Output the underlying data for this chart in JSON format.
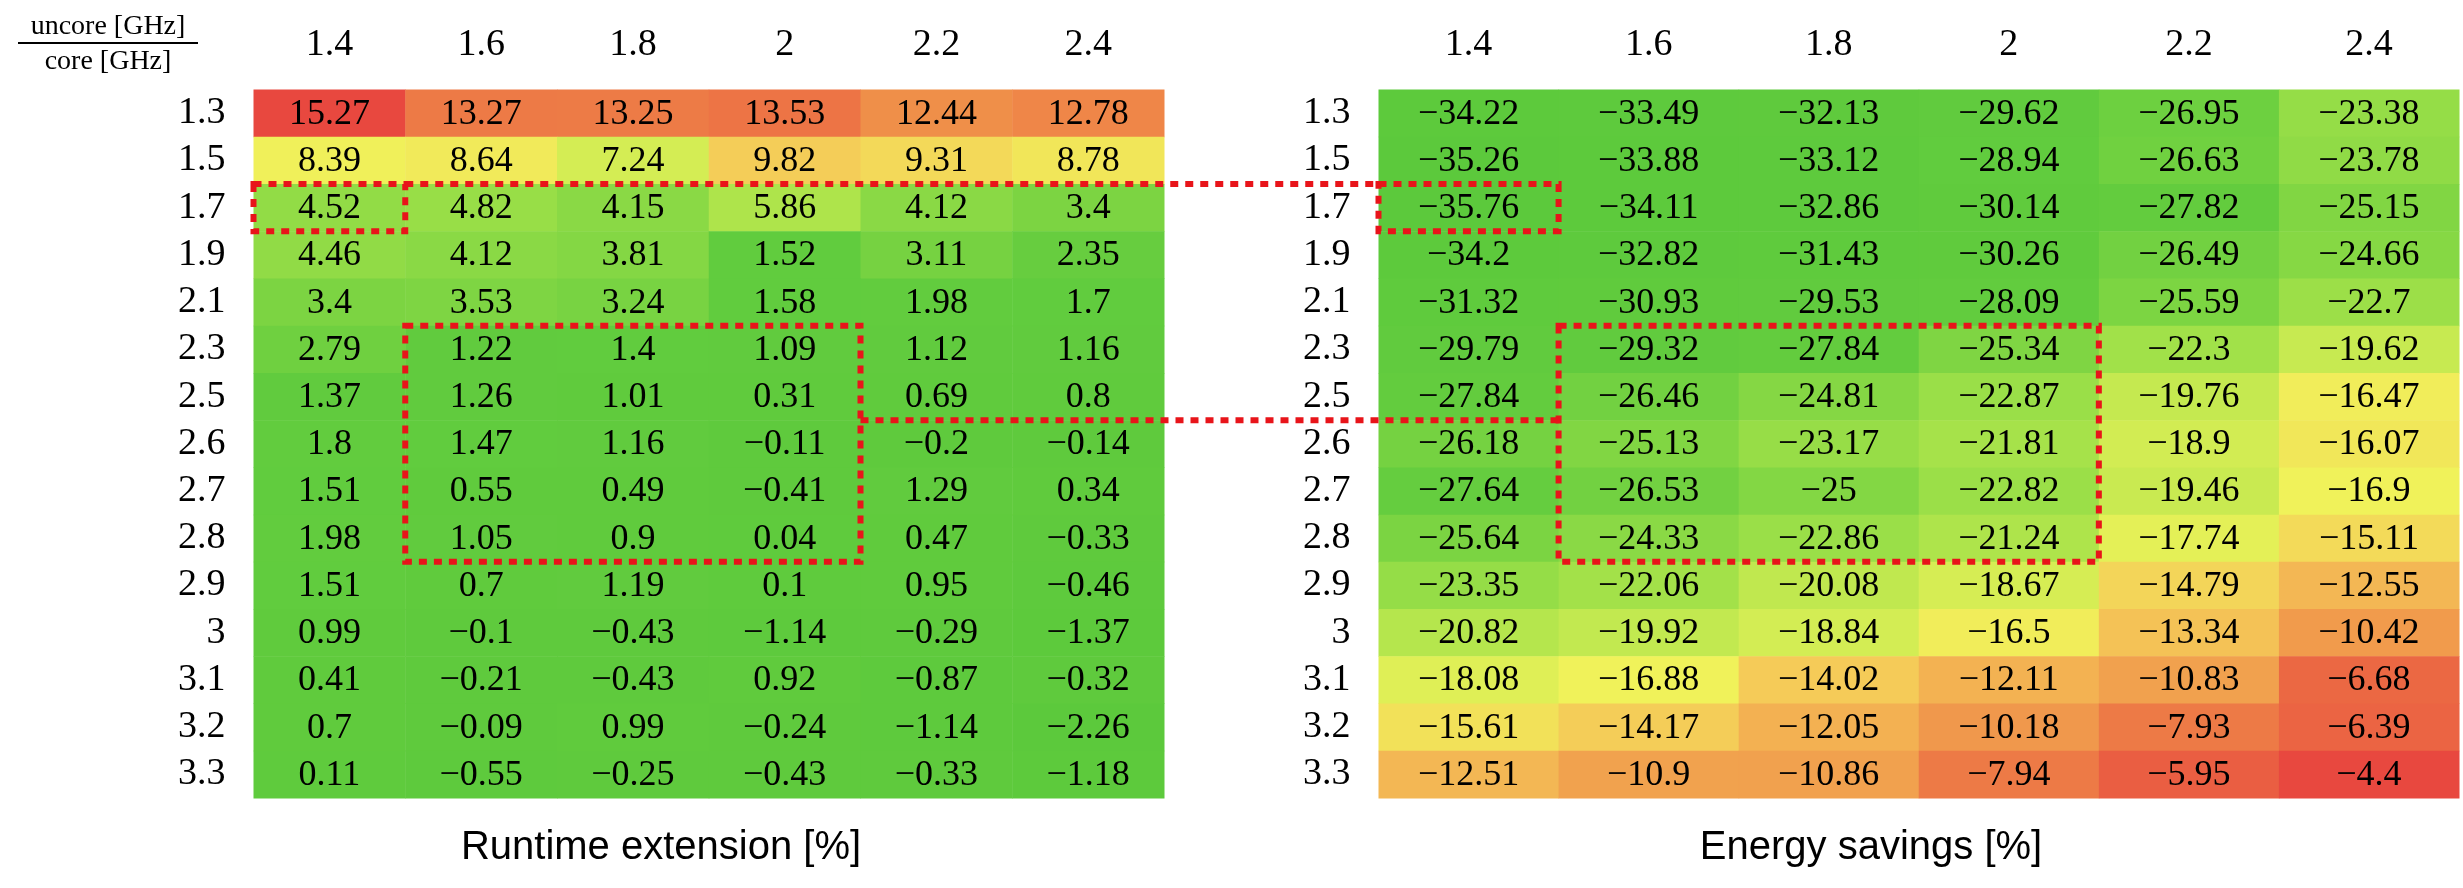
{
  "chart_data": [
    {
      "type": "heatmap",
      "title": "Runtime extension [%]",
      "xlabel": "uncore [GHz]",
      "ylabel": "core [GHz]",
      "data_labels": true,
      "categories": [
        "1.4",
        "1.6",
        "1.8",
        "2",
        "2.2",
        "2.4"
      ],
      "y_categories": [
        "1.3",
        "1.5",
        "1.7",
        "1.9",
        "2.1",
        "2.3",
        "2.5",
        "2.6",
        "2.7",
        "2.8",
        "2.9",
        "3",
        "3.1",
        "3.2",
        "3.3"
      ],
      "cells": [
        [
          15.27,
          13.27,
          13.25,
          13.53,
          12.44,
          12.78
        ],
        [
          8.39,
          8.64,
          7.24,
          9.82,
          9.31,
          8.78
        ],
        [
          4.52,
          4.82,
          4.15,
          5.86,
          4.12,
          3.4
        ],
        [
          4.46,
          4.12,
          3.81,
          1.52,
          3.11,
          2.35
        ],
        [
          3.4,
          3.53,
          3.24,
          1.58,
          1.98,
          1.7
        ],
        [
          2.79,
          1.22,
          1.4,
          1.09,
          1.12,
          1.16
        ],
        [
          1.37,
          1.26,
          1.01,
          0.31,
          0.69,
          0.8
        ],
        [
          1.8,
          1.47,
          1.16,
          -0.11,
          -0.2,
          -0.14
        ],
        [
          1.51,
          0.55,
          0.49,
          -0.41,
          1.29,
          0.34
        ],
        [
          1.98,
          1.05,
          0.9,
          0.04,
          0.47,
          -0.33
        ],
        [
          1.51,
          0.7,
          1.19,
          0.1,
          0.95,
          -0.46
        ],
        [
          0.99,
          -0.1,
          -0.43,
          -1.14,
          -0.29,
          -1.37
        ],
        [
          0.41,
          -0.21,
          -0.43,
          0.92,
          -0.87,
          -0.32
        ],
        [
          0.7,
          -0.09,
          0.99,
          -0.24,
          -1.14,
          -2.26
        ],
        [
          0.11,
          -0.55,
          -0.25,
          -0.43,
          -0.33,
          -1.18
        ]
      ]
    },
    {
      "type": "heatmap",
      "title": "Energy savings [%]",
      "data_labels": true,
      "categories": [
        "1.4",
        "1.6",
        "1.8",
        "2",
        "2.2",
        "2.4"
      ],
      "y_categories": [
        "1.3",
        "1.5",
        "1.7",
        "1.9",
        "2.1",
        "2.3",
        "2.5",
        "2.6",
        "2.7",
        "2.8",
        "2.9",
        "3",
        "3.1",
        "3.2",
        "3.3"
      ],
      "cells": [
        [
          -34.22,
          -33.49,
          -32.13,
          -29.62,
          -26.95,
          -23.38
        ],
        [
          -35.26,
          -33.88,
          -33.12,
          -28.94,
          -26.63,
          -23.78
        ],
        [
          -35.76,
          -34.11,
          -32.86,
          -30.14,
          -27.82,
          -25.15
        ],
        [
          -34.2,
          -32.82,
          -31.43,
          -30.26,
          -26.49,
          -24.66
        ],
        [
          -31.32,
          -30.93,
          -29.53,
          -28.09,
          -25.59,
          -22.7
        ],
        [
          -29.79,
          -29.32,
          -27.84,
          -25.34,
          -22.3,
          -19.62
        ],
        [
          -27.84,
          -26.46,
          -24.81,
          -22.87,
          -19.76,
          -16.47
        ],
        [
          -26.18,
          -25.13,
          -23.17,
          -21.81,
          -18.9,
          -16.07
        ],
        [
          -27.64,
          -26.53,
          -25,
          -22.82,
          -19.46,
          -16.9
        ],
        [
          -25.64,
          -24.33,
          -22.86,
          -21.24,
          -17.74,
          -15.11
        ],
        [
          -23.35,
          -22.06,
          -20.08,
          -18.67,
          -14.79,
          -12.55
        ],
        [
          -20.82,
          -19.92,
          -18.84,
          -16.5,
          -13.34,
          -10.42
        ],
        [
          -18.08,
          -16.88,
          -14.02,
          -12.11,
          -10.83,
          -6.68
        ],
        [
          -15.61,
          -14.17,
          -12.05,
          -10.18,
          -7.93,
          -6.39
        ],
        [
          -12.51,
          -10.9,
          -10.86,
          -7.94,
          -5.95,
          -4.4
        ]
      ]
    }
  ]
}
